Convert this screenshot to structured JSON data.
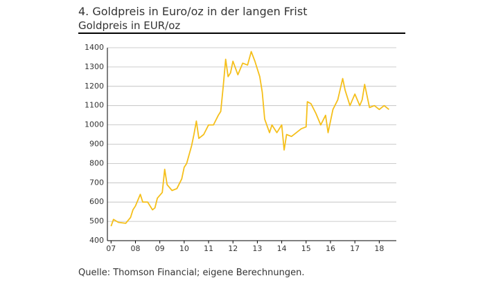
{
  "chart_data": {
    "type": "line",
    "title": "4. Goldpreis in Euro/oz in der langen Frist",
    "subtitle": "Goldpreis in EUR/oz",
    "source": "Quelle: Thomson Financial; eigene Berechnungen.",
    "x": [
      7.0,
      7.1,
      7.3,
      7.6,
      7.8,
      7.9,
      8.0,
      8.2,
      8.3,
      8.5,
      8.7,
      8.8,
      8.9,
      9.1,
      9.2,
      9.3,
      9.5,
      9.7,
      9.9,
      10.0,
      10.1,
      10.3,
      10.4,
      10.5,
      10.6,
      10.8,
      11.0,
      11.2,
      11.4,
      11.5,
      11.6,
      11.7,
      11.8,
      11.9,
      12.0,
      12.2,
      12.4,
      12.6,
      12.75,
      12.9,
      13.1,
      13.2,
      13.3,
      13.5,
      13.6,
      13.8,
      14.0,
      14.1,
      14.2,
      14.4,
      14.6,
      14.8,
      15.0,
      15.05,
      15.2,
      15.4,
      15.6,
      15.8,
      15.9,
      16.1,
      16.3,
      16.5,
      16.6,
      16.8,
      17.0,
      17.2,
      17.3,
      17.4,
      17.6,
      17.8,
      18.0,
      18.2,
      18.4
    ],
    "series": [
      {
        "name": "Goldpreis in EUR/oz",
        "color": "#f5bf1a",
        "values": [
          475,
          510,
          495,
          490,
          520,
          560,
          580,
          640,
          600,
          600,
          560,
          570,
          620,
          650,
          770,
          690,
          660,
          670,
          720,
          780,
          800,
          890,
          950,
          1020,
          930,
          950,
          1000,
          1000,
          1050,
          1070,
          1200,
          1340,
          1250,
          1270,
          1330,
          1260,
          1320,
          1310,
          1380,
          1330,
          1250,
          1170,
          1030,
          960,
          1000,
          960,
          1000,
          870,
          950,
          940,
          960,
          980,
          990,
          1120,
          1110,
          1060,
          1000,
          1050,
          960,
          1080,
          1130,
          1240,
          1180,
          1100,
          1160,
          1100,
          1130,
          1210,
          1090,
          1100,
          1080,
          1100,
          1080
        ]
      }
    ],
    "xlim": [
      6.85,
      18.7
    ],
    "ylim": [
      400,
      1400
    ],
    "xticks": [
      {
        "value": 7,
        "label": "07"
      },
      {
        "value": 8,
        "label": "08"
      },
      {
        "value": 9,
        "label": "09"
      },
      10,
      11,
      12,
      13,
      14,
      15,
      16,
      17,
      18
    ],
    "yticks": [
      400,
      500,
      600,
      700,
      800,
      900,
      1000,
      1100,
      1200,
      1300,
      1400
    ],
    "grid": true
  }
}
